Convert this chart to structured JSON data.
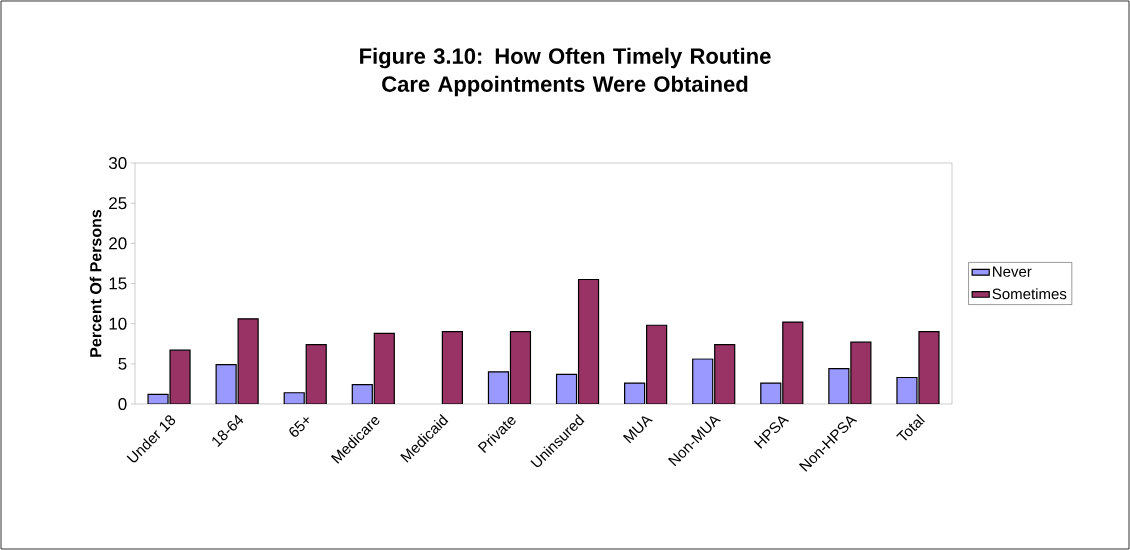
{
  "chart_data": {
    "type": "bar",
    "title": "Figure 3.10: How Often Timely Routine Care Appointments Were Obtained",
    "ylabel": "Percent Of Persons",
    "categories": [
      "Under 18",
      "18-64",
      "65+",
      "Medicare",
      "Medicaid",
      "Private",
      "Uninsured",
      "MUA",
      "Non-MUA",
      "HPSA",
      "Non-HPSA",
      "Total"
    ],
    "series": [
      {
        "name": "Never",
        "color": "#9999ff",
        "values": [
          1.2,
          4.9,
          1.4,
          2.4,
          null,
          4.0,
          3.7,
          2.6,
          5.6,
          2.6,
          4.4,
          3.3
        ]
      },
      {
        "name": "Sometimes",
        "color": "#993366",
        "values": [
          6.7,
          10.6,
          7.4,
          8.8,
          9.0,
          9.0,
          15.5,
          9.8,
          7.4,
          10.2,
          7.7,
          9.0
        ]
      }
    ],
    "ylim": [
      0,
      30
    ],
    "yticks": [
      0,
      5,
      10,
      15,
      20,
      25,
      30
    ],
    "grid": false,
    "legend": "right"
  }
}
